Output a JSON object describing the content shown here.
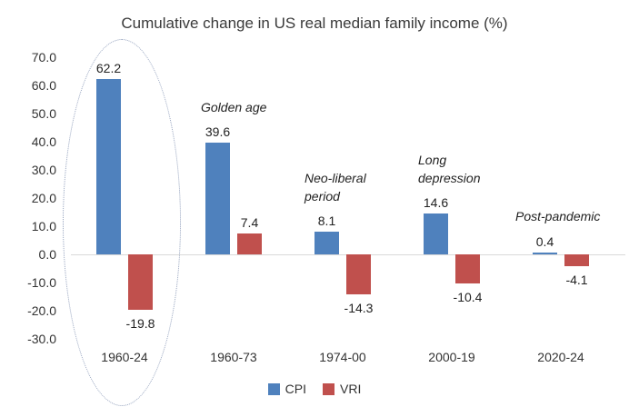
{
  "chart_data": {
    "type": "bar",
    "title": "Cumulative change in US real median family income (%)",
    "categories": [
      "1960-24",
      "1960-73",
      "1974-00",
      "2000-19",
      "2020-24"
    ],
    "series": [
      {
        "name": "CPI",
        "color": "#4F81BD",
        "values": [
          62.2,
          39.6,
          8.1,
          14.6,
          0.4
        ]
      },
      {
        "name": "VRI",
        "color": "#C0504D",
        "values": [
          -19.8,
          7.4,
          -14.3,
          -10.4,
          -4.1
        ]
      }
    ],
    "y_ticks": [
      "70.0",
      "60.0",
      "50.0",
      "40.0",
      "30.0",
      "20.0",
      "10.0",
      "0.0",
      "-10.0",
      "-20.0",
      "-30.0"
    ],
    "ylim": [
      -30,
      70
    ],
    "grid": "zero-line-only",
    "legend_position": "bottom",
    "annotations": [
      {
        "text": "Golden age",
        "category": "1960-73"
      },
      {
        "text": "Neo-liberal\nperiod",
        "category": "1974-00"
      },
      {
        "text": "Long\ndepression",
        "category": "2000-19"
      },
      {
        "text": "Post-pandemic",
        "category": "2020-24"
      }
    ],
    "highlight": {
      "shape": "dashed-ellipse",
      "around_category": "1960-24",
      "color": "#93a1bd"
    }
  },
  "colors": {
    "cpi_blue": "#4F81BD",
    "vri_red": "#C0504D",
    "gridline": "#d9d9d9",
    "text": "#333333"
  }
}
